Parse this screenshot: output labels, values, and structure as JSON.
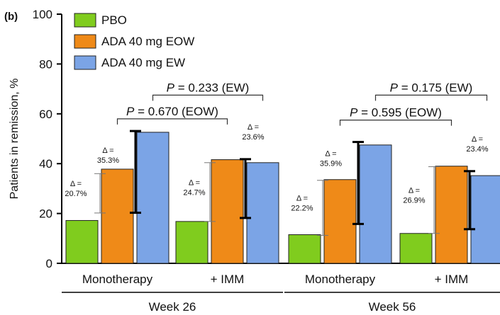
{
  "panel_label": "(b)",
  "chart_data": {
    "type": "bar",
    "ylabel": "Patients in remission, %",
    "ylim": [
      0,
      100
    ],
    "yticks": [
      "0",
      "20",
      "40",
      "60",
      "80",
      "100"
    ],
    "grid": false,
    "legend_position": "top-left",
    "categories": [
      "Monotherapy",
      "+ IMM",
      "Monotherapy",
      "+ IMM"
    ],
    "groups": [
      {
        "label": "Week 26",
        "categories": [
          0,
          1
        ]
      },
      {
        "label": "Week 56",
        "categories": [
          2,
          3
        ]
      }
    ],
    "series": [
      {
        "name": "PBO",
        "color": "#80cc1e",
        "values": [
          17.2,
          16.8,
          11.5,
          12.0
        ]
      },
      {
        "name": "ADA 40 mg EOW",
        "color": "#ef8a18",
        "values": [
          37.8,
          41.6,
          33.6,
          39.0
        ]
      },
      {
        "name": "ADA 40 mg EW",
        "color": "#7ba4e6",
        "values": [
          52.6,
          40.4,
          47.5,
          35.2
        ]
      }
    ],
    "delta_annotations": [
      {
        "category": 0,
        "series": 1,
        "lines": [
          "Δ =",
          "20.7%"
        ],
        "low": 20.2,
        "high": 36.0
      },
      {
        "category": 0,
        "series": 2,
        "lines": [
          "Δ =",
          "35.3%"
        ],
        "low": 20.3,
        "high": 53.1
      },
      {
        "category": 1,
        "series": 1,
        "lines": [
          "Δ =",
          "24.7%"
        ],
        "low": 16.8,
        "high": 40.4
      },
      {
        "category": 1,
        "series": 2,
        "lines": [
          "Δ =",
          "23.6%"
        ],
        "low": 18.2,
        "high": 41.8
      },
      {
        "category": 2,
        "series": 1,
        "lines": [
          "Δ =",
          "22.2%"
        ],
        "low": 11.2,
        "high": 33.3
      },
      {
        "category": 2,
        "series": 2,
        "lines": [
          "Δ =",
          "35.9%"
        ],
        "low": 15.8,
        "high": 48.7
      },
      {
        "category": 3,
        "series": 1,
        "lines": [
          "Δ =",
          "26.9%"
        ],
        "low": 12.0,
        "high": 38.8
      },
      {
        "category": 3,
        "series": 2,
        "lines": [
          "Δ =",
          "23.4%"
        ],
        "low": 13.7,
        "high": 37.0
      }
    ],
    "comparisons": [
      {
        "prefix": "P",
        "text": " = 0.670 (EOW)",
        "from": [
          0,
          1
        ],
        "to": [
          1,
          1
        ],
        "level": 58
      },
      {
        "prefix": "P",
        "text": " = 0.233 (EW)",
        "from": [
          0,
          2
        ],
        "to": [
          1,
          2
        ],
        "level": 67.5
      },
      {
        "prefix": "P",
        "text": " = 0.595 (EOW)",
        "from": [
          2,
          1
        ],
        "to": [
          3,
          1
        ],
        "level": 57.5
      },
      {
        "prefix": "P",
        "text": " = 0.175 (EW)",
        "from": [
          2,
          2
        ],
        "to": [
          3,
          2
        ],
        "level": 67.5
      }
    ]
  }
}
